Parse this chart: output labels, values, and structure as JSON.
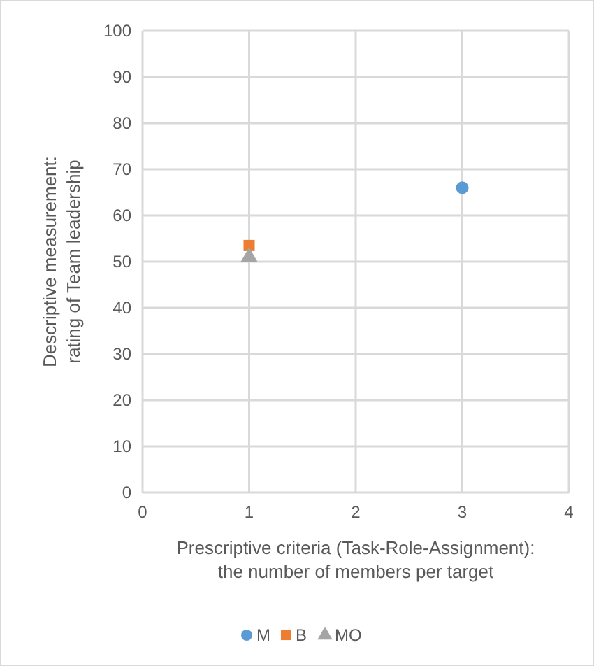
{
  "chart_data": {
    "type": "scatter",
    "xlabel": "Prescriptive criteria (Task-Role-Assignment):\nthe number of members per target",
    "ylabel": "Descriptive measurement:\nrating of Team leadership",
    "xlim": [
      0,
      4
    ],
    "xticks": [
      0,
      1,
      2,
      3,
      4
    ],
    "ylim": [
      0,
      100
    ],
    "yticks": [
      0,
      10,
      20,
      30,
      40,
      50,
      60,
      70,
      80,
      90,
      100
    ],
    "grid": true,
    "legend": "bottom",
    "x": [
      1,
      3
    ],
    "series": [
      {
        "name": "M",
        "color": "#5b9bd5",
        "marker": "circle",
        "values": [
          null,
          66
        ]
      },
      {
        "name": "B",
        "color": "#ed7d31",
        "marker": "square",
        "values": [
          53.5,
          null
        ]
      },
      {
        "name": "MO",
        "color": "#a5a5a5",
        "marker": "triangle",
        "values": [
          51,
          null
        ]
      }
    ]
  }
}
